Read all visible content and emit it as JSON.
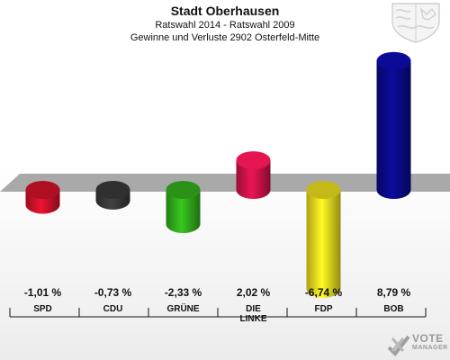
{
  "header": {
    "title": "Stadt Oberhausen",
    "subtitle_1": "Ratswahl 2014 - Ratswahl 2009",
    "subtitle_2": "Gewinne und Verluste 2902 Osterfeld-Mitte"
  },
  "branding": {
    "logo_word": "VOTE",
    "logo_sub": "MANAGER",
    "crest_icon": "coat-of-arms-icon",
    "logo_icon": "vote-manager-check-icon"
  },
  "chart_data": {
    "type": "bar",
    "title": "Stadt Oberhausen",
    "subtitle": "Ratswahl 2014 - Ratswahl 2009 / Gewinne und Verluste 2902 Osterfeld-Mitte",
    "categories": [
      "SPD",
      "CDU",
      "GRÜNE",
      "DIE LINKE",
      "FDP",
      "BOB"
    ],
    "series": [
      {
        "values": [
          -1.01,
          -0.73,
          -2.33,
          2.02,
          -6.74,
          8.79
        ]
      }
    ],
    "value_labels": [
      "-1,01 %",
      "-0,73 %",
      "-2,33 %",
      "2,02 %",
      "-6,74 %",
      "8,79 %"
    ],
    "colors": [
      "#d4122b",
      "#3a3a3a",
      "#33b21c",
      "#d4134b",
      "#f0e01e",
      "#0a0a8c"
    ],
    "ylim": [
      -6.74,
      8.79
    ],
    "grid": false,
    "legend": "none"
  }
}
